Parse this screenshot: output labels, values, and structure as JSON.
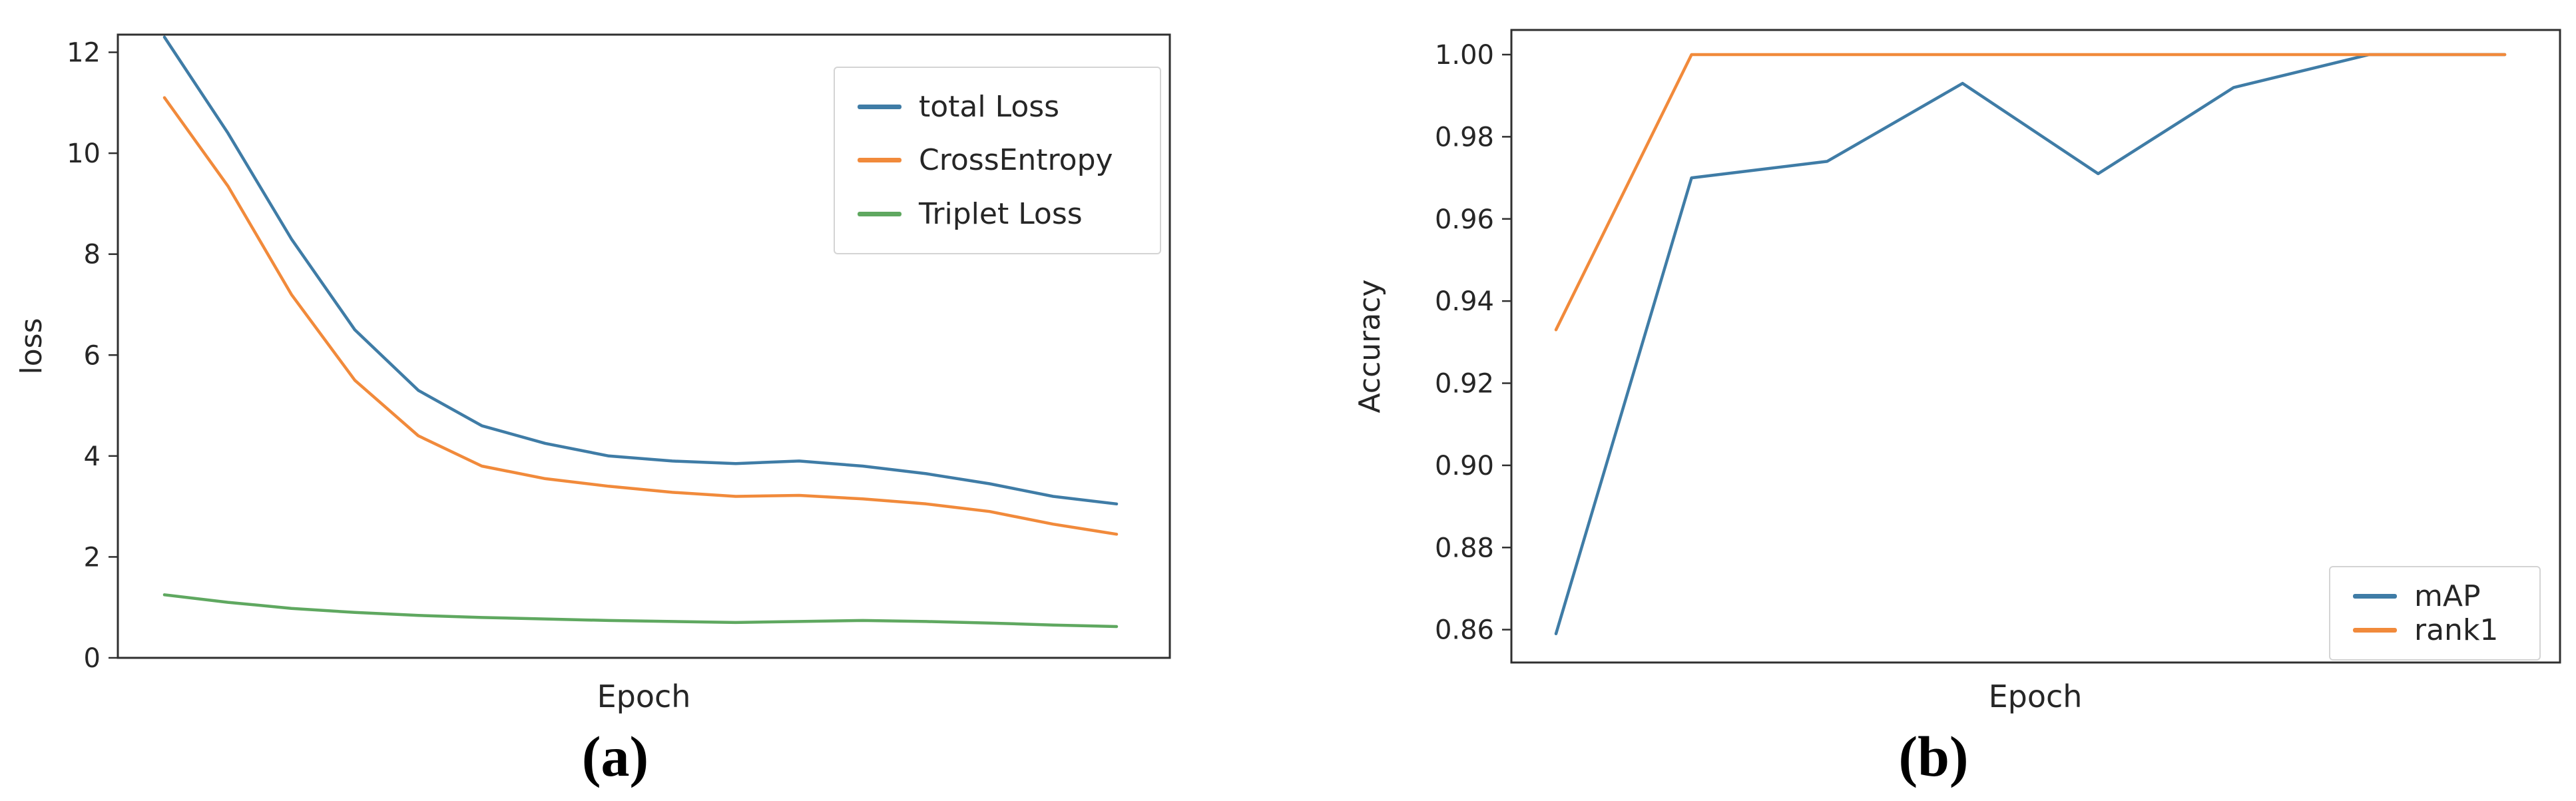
{
  "figure": {
    "caption_a": "(a)",
    "caption_b": "(b)"
  },
  "colors": {
    "blue_line": "#3f7ca6",
    "orange_line": "#f18a3b",
    "green_line": "#5fa860",
    "axis": "#2f2f2f",
    "text": "#262626"
  },
  "chart_data": [
    {
      "type": "line",
      "panel": "a",
      "xlabel": "Epoch",
      "ylabel": "loss",
      "ylim": [
        0,
        12.35
      ],
      "yticks": [
        0,
        2,
        4,
        6,
        8,
        10,
        12
      ],
      "ytick_labels": [
        "0",
        "2",
        "4",
        "6",
        "8",
        "10",
        "12"
      ],
      "xtick_labels": [],
      "grid": false,
      "legend_position": "upper right",
      "x": [
        1,
        2,
        3,
        4,
        5,
        6,
        7,
        8,
        9,
        10,
        11,
        12,
        13,
        14,
        15,
        16
      ],
      "series": [
        {
          "name": "total Loss",
          "color": "#3f7ca6",
          "values": [
            12.3,
            10.4,
            8.3,
            6.5,
            5.3,
            4.6,
            4.25,
            4.0,
            3.9,
            3.85,
            3.9,
            3.8,
            3.65,
            3.45,
            3.2,
            3.05
          ]
        },
        {
          "name": "CrossEntropy",
          "color": "#f18a3b",
          "values": [
            11.1,
            9.35,
            7.2,
            5.5,
            4.4,
            3.8,
            3.55,
            3.4,
            3.28,
            3.2,
            3.22,
            3.15,
            3.05,
            2.9,
            2.65,
            2.45
          ]
        },
        {
          "name": "Triplet Loss",
          "color": "#5fa860",
          "values": [
            1.25,
            1.1,
            0.98,
            0.9,
            0.84,
            0.8,
            0.77,
            0.74,
            0.72,
            0.7,
            0.72,
            0.74,
            0.72,
            0.69,
            0.65,
            0.62
          ]
        }
      ]
    },
    {
      "type": "line",
      "panel": "b",
      "xlabel": "Epoch",
      "ylabel": "Accuracy",
      "ylim": [
        0.852,
        1.006
      ],
      "yticks": [
        0.86,
        0.88,
        0.9,
        0.92,
        0.94,
        0.96,
        0.98,
        1.0
      ],
      "ytick_labels": [
        "0.86",
        "0.88",
        "0.90",
        "0.92",
        "0.94",
        "0.96",
        "0.98",
        "1.00"
      ],
      "xtick_labels": [],
      "grid": false,
      "legend_position": "lower right",
      "x": [
        1,
        2,
        3,
        4,
        5,
        6,
        7,
        8
      ],
      "series": [
        {
          "name": "mAP",
          "color": "#3f7ca6",
          "values": [
            0.859,
            0.97,
            0.974,
            0.993,
            0.971,
            0.992,
            1.0,
            1.0
          ]
        },
        {
          "name": "rank1",
          "color": "#f18a3b",
          "values": [
            0.933,
            1.0,
            1.0,
            1.0,
            1.0,
            1.0,
            1.0,
            1.0
          ]
        }
      ]
    }
  ]
}
